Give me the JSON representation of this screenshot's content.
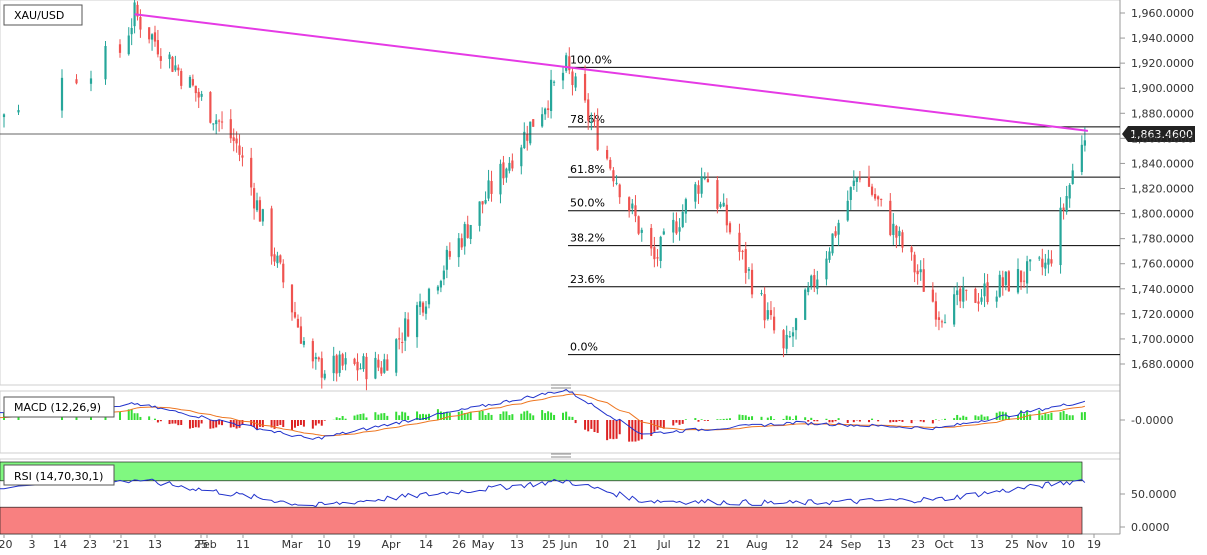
{
  "chart_data": [
    {
      "type": "candlestick",
      "symbol": "XAU/USD",
      "last_price": "1,863.4600",
      "ylim": [
        1670,
        1965
      ],
      "y_ticks": [
        "1,960.0000",
        "1,940.0000",
        "1,920.0000",
        "1,900.0000",
        "1,880.0000",
        "1,860.0000",
        "1,840.0000",
        "1,820.0000",
        "1,800.0000",
        "1,780.0000",
        "1,760.0000",
        "1,740.0000",
        "1,720.0000",
        "1,700.0000",
        "1,680.0000"
      ],
      "y_tick_values": [
        1960,
        1940,
        1920,
        1900,
        1880,
        1860,
        1840,
        1820,
        1800,
        1780,
        1760,
        1740,
        1720,
        1700,
        1680
      ],
      "x_tick_labels": [
        "'20",
        "3",
        "14",
        "23",
        "'21",
        "13",
        "25",
        "Feb",
        "11",
        "Mar",
        "10",
        "19",
        "Apr",
        "14",
        "26",
        "May",
        "13",
        "25",
        "Jun",
        "10",
        "21",
        "Jul",
        "12",
        "21",
        "Aug",
        "12",
        "24",
        "Sep",
        "13",
        "23",
        "Oct",
        "13",
        "25",
        "Nov",
        "10",
        "19"
      ],
      "key_points": [
        {
          "x": "Dec 2020",
          "y": 1800
        },
        {
          "x": "Jan 06 2021",
          "y": 1959
        },
        {
          "x": "Feb 10",
          "y": 1855
        },
        {
          "x": "Mar 08",
          "y": 1677
        },
        {
          "x": "Mar 31",
          "y": 1678
        },
        {
          "x": "Jun 01",
          "y": 1916
        },
        {
          "x": "Jun 29",
          "y": 1762
        },
        {
          "x": "Jul 15",
          "y": 1833
        },
        {
          "x": "Aug 09",
          "y": 1688
        },
        {
          "x": "Sep 03",
          "y": 1834
        },
        {
          "x": "Sep 29",
          "y": 1722
        },
        {
          "x": "Nov 04",
          "y": 1759
        },
        {
          "x": "Nov 16",
          "y": 1869
        }
      ],
      "trendline": {
        "from": {
          "x": "Jan 06 2021",
          "y": 1959
        },
        "to": {
          "x": "Nov 17",
          "y": 1866
        },
        "color": "#e53ae5"
      },
      "fibonacci_levels": [
        {
          "label": "100.0%",
          "value": 1916.6
        },
        {
          "label": "78.6%",
          "value": 1869.2
        },
        {
          "label": "61.8%",
          "value": 1829.1
        },
        {
          "label": "50.0%",
          "value": 1802.3
        },
        {
          "label": "38.2%",
          "value": 1774.4
        },
        {
          "label": "23.6%",
          "value": 1741.6
        },
        {
          "label": "0.0%",
          "value": 1687.5
        }
      ],
      "colors": {
        "up": "#26a69a",
        "down": "#ef5350",
        "trend": "#e53ae5"
      }
    },
    {
      "type": "line",
      "title": "MACD (12,26,9)",
      "y_ticks": [
        "-0.0000"
      ],
      "series": [
        {
          "name": "MACD",
          "color": "#2233cc"
        },
        {
          "name": "Signal",
          "color": "#ee7722"
        },
        {
          "name": "Histogram",
          "pos_color": "#33dd33",
          "neg_color": "#dd2222"
        }
      ],
      "key_points_macd": [
        {
          "x": "Dec 2020",
          "y": -5
        },
        {
          "x": "Jan 06 2021",
          "y": 30
        },
        {
          "x": "Mar 08",
          "y": -35
        },
        {
          "x": "Jun 01",
          "y": 55
        },
        {
          "x": "Jun 25",
          "y": -25
        },
        {
          "x": "Aug 12",
          "y": -5
        },
        {
          "x": "Sep 29",
          "y": -15
        },
        {
          "x": "Nov 17",
          "y": 35
        }
      ]
    },
    {
      "type": "line",
      "title": "RSI (14,70,30,1)",
      "y_ticks": [
        "50.0000",
        "0.0000"
      ],
      "overbought": 70,
      "oversold": 30,
      "colors": {
        "line": "#2233cc",
        "overbought_zone": "#80f880",
        "oversold_zone": "#f88080"
      },
      "key_points_rsi": [
        {
          "x": "Dec 2020",
          "y": 50
        },
        {
          "x": "Jan 06 2021",
          "y": 72
        },
        {
          "x": "Mar 08",
          "y": 32
        },
        {
          "x": "Jun 01",
          "y": 70
        },
        {
          "x": "Jun 25",
          "y": 40
        },
        {
          "x": "Aug 09",
          "y": 36
        },
        {
          "x": "Sep 29",
          "y": 42
        },
        {
          "x": "Nov 17",
          "y": 72
        }
      ]
    }
  ]
}
